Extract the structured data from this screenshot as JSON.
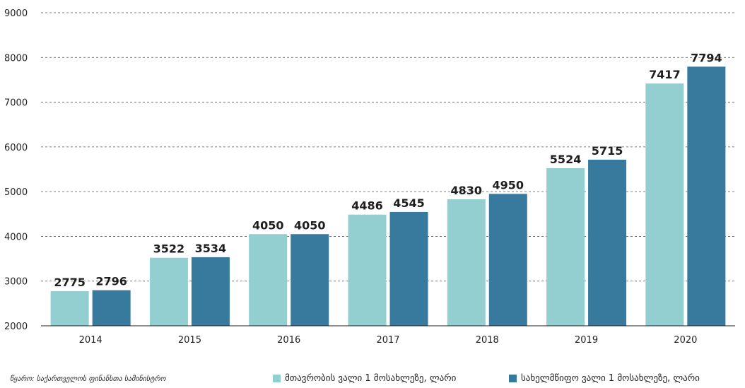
{
  "chart_data": {
    "type": "bar",
    "categories": [
      "2014",
      "2015",
      "2016",
      "2017",
      "2018",
      "2019",
      "2020"
    ],
    "series": [
      {
        "name": "მთავრობის ვალი 1 მოსახლეზე, ლარი",
        "color": "#93ced0",
        "values": [
          2775,
          3522,
          4050,
          4486,
          4830,
          5524,
          7417
        ]
      },
      {
        "name": "სახელმწიფო ვალი 1 მოსახლეზე, ლარი",
        "color": "#38799e",
        "values": [
          2796,
          3534,
          4050,
          4545,
          4950,
          5715,
          7794
        ]
      }
    ],
    "ylim": [
      2000,
      9000
    ],
    "yticks": [
      "2000",
      "3000",
      "4000",
      "5000",
      "6000",
      "7000",
      "8000",
      "9000"
    ],
    "grid": true,
    "legend_placement": "bottom-right"
  },
  "source": "წყარო: საქართველოს ფინანსთა სამინისტრო"
}
